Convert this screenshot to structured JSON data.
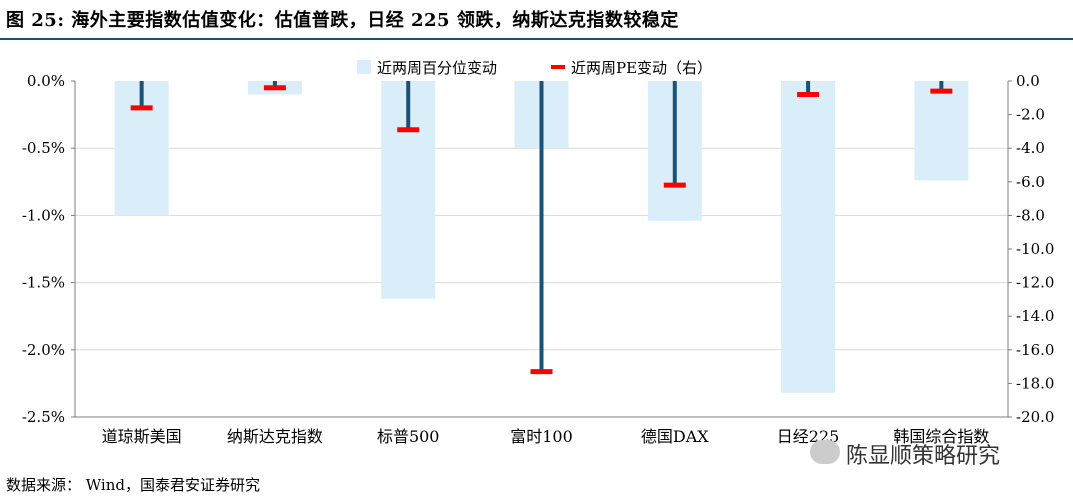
{
  "title": "图 25:  海外主要指数估值变化：估值普跌，日经 225 领跌，纳斯达克指数较稳定",
  "source": "数据来源：   Wind，国泰君安证券研究",
  "watermark": {
    "text": "陈显顺策略研究",
    "icon": "wechat-icon"
  },
  "colors": {
    "bar": "#d9eef9",
    "line": "#1a5276",
    "marker": "#ff0000",
    "title_rule": "#1f4e79"
  },
  "chart_data": {
    "type": "bar",
    "categories": [
      "道琼斯美国",
      "纳斯达克指数",
      "标普500",
      "富时100",
      "德国DAX",
      "日经225",
      "韩国综合指数"
    ],
    "series": [
      {
        "name": "近两周百分位变动",
        "axis": "left",
        "values": [
          -1.0,
          -0.1,
          -1.62,
          -0.5,
          -1.04,
          -2.32,
          -0.74
        ]
      },
      {
        "name": "近两周PE变动（右）",
        "axis": "right",
        "values": [
          -1.6,
          -0.4,
          -2.9,
          -17.3,
          -6.2,
          -0.8,
          -0.6
        ]
      }
    ],
    "left_axis": {
      "min": -2.5,
      "max": 0.0,
      "ticks": [
        "0.0%",
        "-0.5%",
        "-1.0%",
        "-1.5%",
        "-2.0%",
        "-2.5%"
      ]
    },
    "right_axis": {
      "min": -20.0,
      "max": 0.0,
      "ticks": [
        "0.0",
        "-2.0",
        "-4.0",
        "-6.0",
        "-8.0",
        "-10.0",
        "-12.0",
        "-14.0",
        "-16.0",
        "-18.0",
        "-20.0"
      ]
    },
    "grid": true,
    "legend_position": "top"
  }
}
